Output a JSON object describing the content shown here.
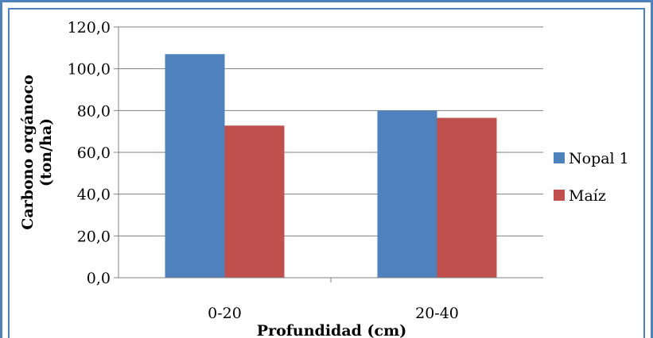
{
  "chart_data": {
    "type": "bar",
    "categories": [
      "0-20",
      "20-40"
    ],
    "series": [
      {
        "name": "Nopal 1",
        "values": [
          107.0,
          80.0
        ],
        "color": "#4f81bd"
      },
      {
        "name": "Maíz",
        "values": [
          72.8,
          76.5
        ],
        "color": "#c0504d"
      }
    ],
    "xlabel": "Profundidad (cm)",
    "ylabel_line1": "Carbono orgánoco",
    "ylabel_line2": "(ton/ha)",
    "ylim": [
      0,
      120
    ],
    "yticks": [
      "0,0",
      "20,0",
      "40,0",
      "60,0",
      "80,0",
      "100,0",
      "120,0"
    ],
    "grid": true,
    "legend_position": "right"
  }
}
